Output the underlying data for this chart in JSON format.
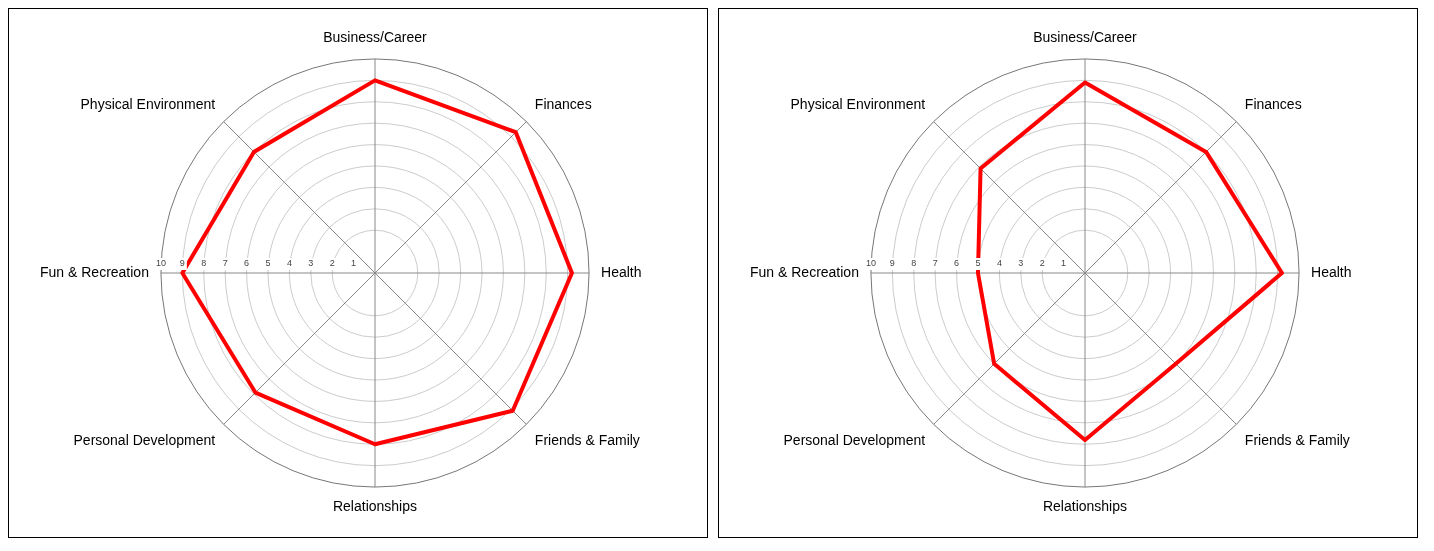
{
  "chart_data": [
    {
      "type": "radar",
      "categories": [
        "Business/Career",
        "Finances",
        "Health",
        "Friends & Family",
        "Relationships",
        "Personal Development",
        "Fun & Recreation",
        "Physical Environment"
      ],
      "ylim": [
        0,
        10
      ],
      "yticks": [
        1,
        2,
        3,
        4,
        5,
        6,
        7,
        8,
        9,
        10
      ],
      "grid": true,
      "legend": false,
      "marker": "none",
      "series": [
        {
          "color": "#ff0000",
          "values": [
            9.0,
            9.3,
            9.2,
            9.1,
            8.0,
            7.9,
            9.0,
            8.0
          ]
        }
      ]
    },
    {
      "type": "radar",
      "categories": [
        "Business/Career",
        "Finances",
        "Health",
        "Friends & Family",
        "Relationships",
        "Personal Development",
        "Fun & Recreation",
        "Physical Environment"
      ],
      "ylim": [
        0,
        10
      ],
      "yticks": [
        1,
        2,
        3,
        4,
        5,
        6,
        7,
        8,
        9,
        10
      ],
      "grid": true,
      "legend": false,
      "marker": "none",
      "series": [
        {
          "color": "#ff0000",
          "values": [
            8.9,
            8.0,
            9.2,
            6.0,
            7.8,
            6.0,
            5.0,
            6.9
          ]
        }
      ]
    }
  ]
}
